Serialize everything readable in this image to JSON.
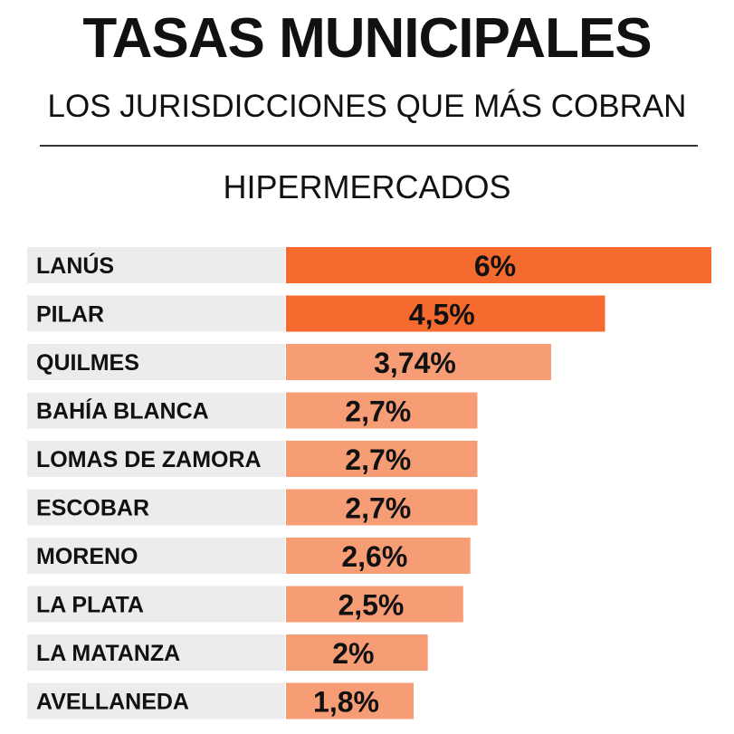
{
  "title": "TASAS MUNICIPALES",
  "subtitle": "LOS JURISDICCIONES QUE MÁS COBRAN",
  "section": "HIPERMERCADOS",
  "colors": {
    "dark_bar": "#f56a2e",
    "light_bar": "#f79d76",
    "label_bg": "#ececec",
    "text": "#111111"
  },
  "chart_data": {
    "type": "bar",
    "orientation": "horizontal",
    "categories": [
      "LANÚS",
      "PILAR",
      "QUILMES",
      "BAHÍA BLANCA",
      "LOMAS DE ZAMORA",
      "ESCOBAR",
      "MORENO",
      "LA PLATA",
      "LA MATANZA",
      "AVELLANEDA"
    ],
    "values": [
      6,
      4.5,
      3.74,
      2.7,
      2.7,
      2.7,
      2.6,
      2.5,
      2,
      1.8
    ],
    "value_labels": [
      "6%",
      "4,5%",
      "3,74%",
      "2,7%",
      "2,7%",
      "2,7%",
      "2,6%",
      "2,5%",
      "2%",
      "1,8%"
    ],
    "highlighted": [
      true,
      true,
      false,
      false,
      false,
      false,
      false,
      false,
      false,
      false
    ],
    "xlim": [
      0,
      6
    ],
    "grid": false,
    "legend": "none",
    "title": "HIPERMERCADOS"
  }
}
